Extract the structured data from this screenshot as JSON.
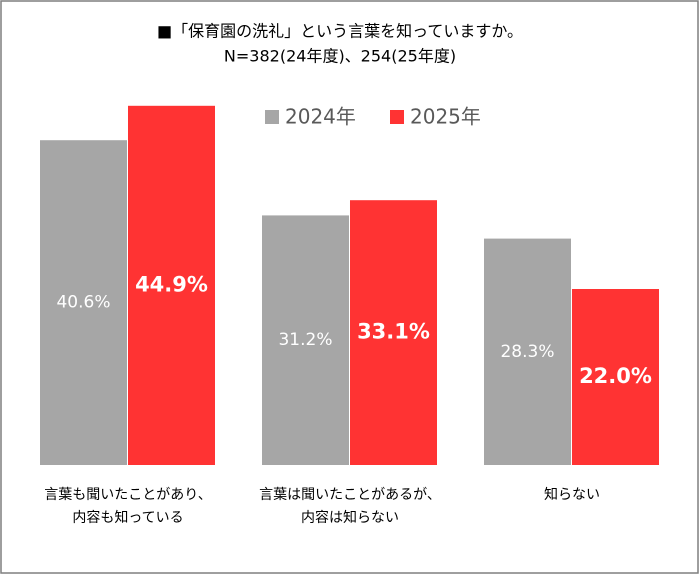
{
  "chart_data": {
    "type": "bar",
    "title": "■「保育園の洗礼」という言葉を知っていますか。",
    "subtitle": "N=382(24年度)、254(25年度)",
    "categories": [
      [
        "言葉も聞いたことがあり、",
        "内容も知っている"
      ],
      [
        "言葉は聞いたことがあるが、",
        "内容は知らない"
      ],
      [
        "知らない"
      ]
    ],
    "series": [
      {
        "name": "2024年",
        "color": "#a6a6a6",
        "values": [
          40.6,
          31.2,
          28.3
        ],
        "value_labels": [
          "40.6%",
          "31.2%",
          "28.3%"
        ]
      },
      {
        "name": "2025年",
        "color": "#ff3333",
        "values": [
          44.9,
          33.1,
          22.0
        ],
        "value_labels": [
          "44.9%",
          "33.1%",
          "22.0%"
        ]
      }
    ]
  }
}
